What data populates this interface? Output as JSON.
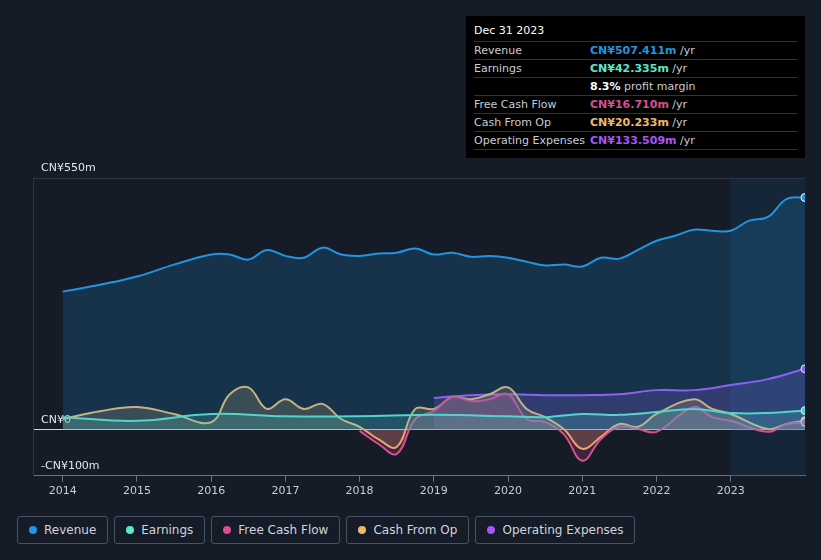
{
  "chart_data": {
    "type": "line",
    "xlim": [
      2013.6,
      2024.0
    ],
    "xticks": [
      2014,
      2015,
      2016,
      2017,
      2018,
      2019,
      2020,
      2021,
      2022,
      2023
    ],
    "ylim": [
      -100,
      550
    ],
    "yticks": [
      {
        "value": -100,
        "label": "-CN¥100m"
      },
      {
        "value": 0,
        "label": "CN¥0"
      },
      {
        "value": 550,
        "label": "CN¥550m"
      }
    ],
    "grid": true,
    "legend": "bottom",
    "marker": "end",
    "series": [
      {
        "name": "Revenue",
        "color": "#2394df",
        "type": "area",
        "x": [
          2014,
          2014.5,
          2015,
          2015.5,
          2016,
          2016.25,
          2016.5,
          2016.75,
          2017,
          2017.25,
          2017.5,
          2017.75,
          2018,
          2018.25,
          2018.5,
          2018.75,
          2019,
          2019.25,
          2019.5,
          2019.75,
          2020,
          2020.25,
          2020.5,
          2020.75,
          2021,
          2021.25,
          2021.5,
          2021.75,
          2022,
          2022.25,
          2022.5,
          2022.75,
          2023,
          2023.25,
          2023.5,
          2023.75,
          2024
        ],
        "values": [
          302,
          317,
          335,
          361,
          383,
          383,
          372,
          393,
          380,
          376,
          398,
          383,
          380,
          385,
          387,
          396,
          383,
          387,
          378,
          380,
          376,
          367,
          359,
          361,
          357,
          376,
          374,
          393,
          413,
          424,
          437,
          435,
          435,
          457,
          465,
          504,
          507.4
        ]
      },
      {
        "name": "Earnings",
        "color": "#5ce6c8",
        "type": "area",
        "x": [
          2014,
          2015,
          2016,
          2017,
          2018,
          2019,
          2020,
          2020.5,
          2021,
          2021.5,
          2022,
          2022.5,
          2023,
          2023.5,
          2024
        ],
        "values": [
          28,
          20,
          35,
          30,
          30,
          33,
          30,
          28,
          35,
          33,
          39,
          46,
          37,
          37,
          42.3
        ]
      },
      {
        "name": "Free Cash Flow",
        "color": "#d94e8f",
        "type": "area",
        "x": [
          2018,
          2018.25,
          2018.5,
          2018.75,
          2019,
          2019.25,
          2019.5,
          2019.75,
          2020,
          2020.25,
          2020.5,
          2020.75,
          2021,
          2021.25,
          2021.5,
          2021.75,
          2022,
          2022.5,
          2022.75,
          2023,
          2023.5,
          2023.75,
          2024
        ],
        "values": [
          -2,
          -30,
          -52,
          24,
          41,
          72,
          63,
          67,
          78,
          24,
          17,
          -9,
          -67,
          -20,
          7,
          2,
          -4,
          50,
          28,
          20,
          -4,
          13,
          16.7
        ]
      },
      {
        "name": "Cash From Op",
        "color": "#f0b86a",
        "type": "area",
        "x": [
          2014,
          2014.5,
          2015,
          2015.5,
          2016,
          2016.25,
          2016.5,
          2016.75,
          2017,
          2017.25,
          2017.5,
          2017.75,
          2018,
          2018.25,
          2018.5,
          2018.75,
          2019,
          2019.25,
          2019.5,
          2019.75,
          2020,
          2020.25,
          2020.5,
          2020.75,
          2021,
          2021.25,
          2021.5,
          2021.75,
          2022,
          2022.5,
          2022.75,
          2023,
          2023.5,
          2023.75,
          2024
        ],
        "values": [
          24,
          41,
          50,
          35,
          17,
          78,
          93,
          46,
          67,
          46,
          57,
          24,
          7,
          -20,
          -37,
          46,
          46,
          72,
          67,
          78,
          93,
          46,
          28,
          2,
          -41,
          -15,
          13,
          7,
          35,
          67,
          46,
          35,
          2,
          13,
          20.2
        ]
      },
      {
        "name": "Operating Expenses",
        "color": "#a855f7",
        "type": "area",
        "x": [
          2019,
          2019.5,
          2020,
          2020.5,
          2021,
          2021.5,
          2022,
          2022.5,
          2023,
          2023.5,
          2024
        ],
        "values": [
          70,
          76,
          78,
          76,
          76,
          78,
          87,
          87,
          98,
          111,
          133.5
        ]
      }
    ],
    "info_box": {
      "title": "Dec 31 2023",
      "rows": [
        {
          "label": "Revenue",
          "value": "CN¥507.411m",
          "unit": "/yr",
          "color": "#2394df"
        },
        {
          "label": "Earnings",
          "value": "CN¥42.335m",
          "unit": "/yr",
          "color": "#5ce6c8"
        },
        {
          "value": "8.3%",
          "unit": "profit margin",
          "color": "#ffffff"
        },
        {
          "label": "Free Cash Flow",
          "value": "CN¥16.710m",
          "unit": "/yr",
          "color": "#d94e8f"
        },
        {
          "label": "Cash From Op",
          "value": "CN¥20.233m",
          "unit": "/yr",
          "color": "#f0b86a"
        },
        {
          "label": "Operating Expenses",
          "value": "CN¥133.509m",
          "unit": "/yr",
          "color": "#a855f7"
        }
      ]
    }
  }
}
